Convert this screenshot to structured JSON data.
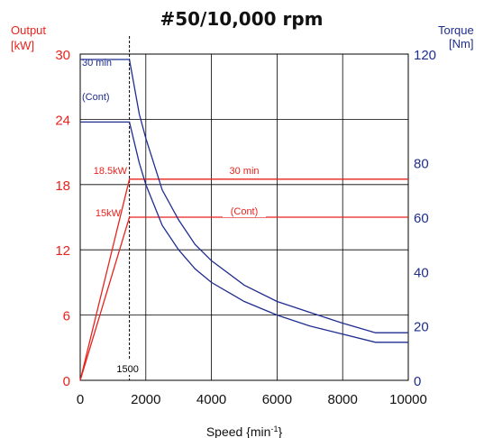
{
  "chart_data": {
    "type": "line",
    "title": "#50/10,000 rpm",
    "xlabel": "Speed {min",
    "xlabel_sup": "-1",
    "xlabel_end": "}",
    "xlim": [
      0,
      10000
    ],
    "x_ticks": [
      "0",
      "2000",
      "4000",
      "6000",
      "8000",
      "10000"
    ],
    "x_tick_values": [
      0,
      2000,
      4000,
      6000,
      8000,
      10000
    ],
    "y_left": {
      "label_line1": "Output",
      "label_line2": "[kW]",
      "ylim": [
        0,
        30
      ],
      "ticks": [
        "0",
        "6",
        "12",
        "18",
        "24",
        "30"
      ],
      "tick_values": [
        0,
        6,
        12,
        18,
        24,
        30
      ],
      "color": "#e8231d"
    },
    "y_right": {
      "label_line1": "Torque",
      "label_line2": "[Nm]",
      "ylim": [
        0,
        120
      ],
      "ticks": [
        "0",
        "20",
        "40",
        "60",
        "80",
        "120"
      ],
      "tick_values": [
        0,
        20,
        40,
        60,
        80,
        120
      ],
      "color": "#1f2d8f"
    },
    "grid": true,
    "base_speed_marker": {
      "label": "1500",
      "x": 1500
    },
    "series": [
      {
        "axis": "left",
        "color": "#e8231d",
        "points": [
          [
            0,
            0
          ],
          [
            1500,
            18.5
          ],
          [
            10000,
            18.5
          ]
        ]
      },
      {
        "axis": "left",
        "color": "#e8231d",
        "points": [
          [
            0,
            0
          ],
          [
            1500,
            15
          ],
          [
            10000,
            15
          ]
        ]
      },
      {
        "axis": "right",
        "color": "#1f2d8f",
        "points": [
          [
            0,
            118
          ],
          [
            1500,
            118
          ],
          [
            1800,
            98
          ],
          [
            2000,
            89
          ],
          [
            2500,
            70
          ],
          [
            3000,
            59
          ],
          [
            3500,
            50
          ],
          [
            4000,
            44
          ],
          [
            5000,
            35
          ],
          [
            6000,
            29
          ],
          [
            7000,
            25
          ],
          [
            8000,
            21
          ],
          [
            9000,
            17.5
          ],
          [
            10000,
            17.5
          ]
        ]
      },
      {
        "axis": "right",
        "color": "#1f2d8f",
        "points": [
          [
            0,
            95
          ],
          [
            1500,
            95
          ],
          [
            1800,
            80
          ],
          [
            2000,
            72
          ],
          [
            2500,
            57
          ],
          [
            3000,
            48
          ],
          [
            3500,
            41
          ],
          [
            4000,
            36
          ],
          [
            5000,
            29
          ],
          [
            6000,
            24
          ],
          [
            7000,
            20
          ],
          [
            8000,
            17
          ],
          [
            9000,
            14
          ],
          [
            10000,
            14
          ]
        ]
      }
    ],
    "annotations": [
      {
        "text": "30 min",
        "color": "#1f2d8f"
      },
      {
        "text": "(Cont)",
        "color": "#1f2d8f"
      },
      {
        "text": "18.5kW",
        "color": "#e8231d"
      },
      {
        "text": "15kW",
        "color": "#e8231d"
      },
      {
        "text": "30 min",
        "color": "#e8231d"
      },
      {
        "text": "(Cont)",
        "color": "#e8231d"
      }
    ]
  }
}
